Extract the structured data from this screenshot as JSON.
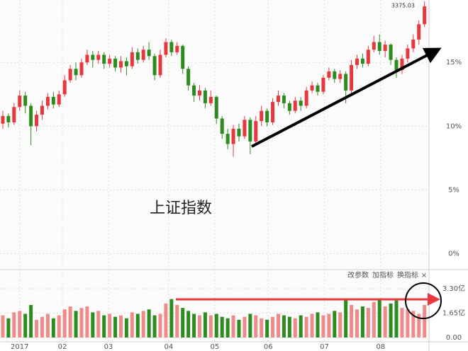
{
  "chart_data": [
    {
      "type": "candlestick",
      "label": "上证指数",
      "high_label": "3375.03",
      "up_color": "#e8383d",
      "down_color": "#2e8b1e",
      "xlim": [
        -0.5,
        75.8
      ],
      "ylim": [
        -1.2,
        19.9
      ],
      "yticks": [
        {
          "value": 0,
          "label": "0%"
        },
        {
          "value": 5,
          "label": "5%"
        },
        {
          "value": 10,
          "label": "10%"
        },
        {
          "value": 15,
          "label": "15%"
        }
      ],
      "xticks": [
        {
          "value": 3.0,
          "label": "2017"
        },
        {
          "value": 10.6,
          "label": "02"
        },
        {
          "value": 18.8,
          "label": "03"
        },
        {
          "value": 29.5,
          "label": "04"
        },
        {
          "value": 37.7,
          "label": "05"
        },
        {
          "value": 47.2,
          "label": "06"
        },
        {
          "value": 57.2,
          "label": "07"
        },
        {
          "value": 67.2,
          "label": "08"
        }
      ],
      "open": [
        10.2,
        10.8,
        10.3,
        11.5,
        12.4,
        11.6,
        10.0,
        10.9,
        11.6,
        12.3,
        11.7,
        12.5,
        13.6,
        14.5,
        14.0,
        15.0,
        15.6,
        15.2,
        15.6,
        14.9,
        15.3,
        14.6,
        15.1,
        14.7,
        15.8,
        15.2,
        16.0,
        15.5,
        14.0,
        15.6,
        16.6,
        15.8,
        16.3,
        14.5,
        13.2,
        12.4,
        12.8,
        11.8,
        12.3,
        10.6,
        9.4,
        8.6,
        9.8,
        9.2,
        10.5,
        8.8,
        10.4,
        11.2,
        10.3,
        11.9,
        12.4,
        11.8,
        11.2,
        12.0,
        11.6,
        12.8,
        13.2,
        12.7,
        13.8,
        14.3,
        13.7,
        14.1,
        12.8,
        14.8,
        15.3,
        14.9,
        16.0,
        16.6,
        15.9,
        16.4,
        15.2,
        14.4,
        15.3,
        16.1,
        16.8,
        18.0
      ],
      "high": [
        11.2,
        11.0,
        11.8,
        12.8,
        12.7,
        11.8,
        11.2,
        12.0,
        12.6,
        12.7,
        12.8,
        14.0,
        14.8,
        15.0,
        15.3,
        16.0,
        15.9,
        15.9,
        15.8,
        15.6,
        15.5,
        15.5,
        15.4,
        16.2,
        16.1,
        16.3,
        16.6,
        15.7,
        16.0,
        16.9,
        16.8,
        16.6,
        16.4,
        14.7,
        13.4,
        13.2,
        13.0,
        12.8,
        12.4,
        10.8,
        9.8,
        10.1,
        10.2,
        10.8,
        10.7,
        10.8,
        11.6,
        11.4,
        12.2,
        12.8,
        12.6,
        12.0,
        12.3,
        12.3,
        13.1,
        13.5,
        13.4,
        14.0,
        14.6,
        14.5,
        14.4,
        14.3,
        15.2,
        15.6,
        15.7,
        16.3,
        17.1,
        17.2,
        16.7,
        16.5,
        15.4,
        15.6,
        16.4,
        17.2,
        18.3,
        19.8
      ],
      "low": [
        9.8,
        9.9,
        10.1,
        11.2,
        11.0,
        8.5,
        9.6,
        10.5,
        11.3,
        11.4,
        11.5,
        12.3,
        13.4,
        13.6,
        13.8,
        14.8,
        14.6,
        14.9,
        14.5,
        14.6,
        14.3,
        14.2,
        14.0,
        14.5,
        14.9,
        15.0,
        15.2,
        13.6,
        13.8,
        15.4,
        15.5,
        15.6,
        14.1,
        12.8,
        11.9,
        12.0,
        11.4,
        11.6,
        10.2,
        9.0,
        8.2,
        7.6,
        8.8,
        9.0,
        7.8,
        8.6,
        10.0,
        10.0,
        10.1,
        11.6,
        11.4,
        10.9,
        11.0,
        11.2,
        11.4,
        12.6,
        12.4,
        12.5,
        13.6,
        13.4,
        13.4,
        11.8,
        12.6,
        14.5,
        14.6,
        14.7,
        15.8,
        15.6,
        15.4,
        14.8,
        13.8,
        14.1,
        15.0,
        15.8,
        16.4,
        17.8
      ],
      "close": [
        10.8,
        10.3,
        11.5,
        12.4,
        11.6,
        10.0,
        10.9,
        11.6,
        12.3,
        11.7,
        12.5,
        13.6,
        14.5,
        14.0,
        15.0,
        15.6,
        15.2,
        15.6,
        14.9,
        15.3,
        14.6,
        15.1,
        14.7,
        15.8,
        15.2,
        16.0,
        15.5,
        14.0,
        15.6,
        16.6,
        15.8,
        16.3,
        14.5,
        13.2,
        12.4,
        12.8,
        11.8,
        12.3,
        10.6,
        9.4,
        8.6,
        9.8,
        9.2,
        10.5,
        8.8,
        10.4,
        11.2,
        10.3,
        11.9,
        12.4,
        11.8,
        11.2,
        12.0,
        11.6,
        12.8,
        13.2,
        12.7,
        13.8,
        14.3,
        13.7,
        14.1,
        12.8,
        14.8,
        15.3,
        14.9,
        16.0,
        16.6,
        15.9,
        16.4,
        15.2,
        14.4,
        15.3,
        16.1,
        16.8,
        18.0,
        19.4
      ]
    },
    {
      "type": "bar",
      "controls": [
        "改参数",
        "加指标",
        "换指标",
        "×"
      ],
      "up_color": "#f08a8a",
      "down_color": "#2e8b1e",
      "ylim": [
        -0.24,
        4.54
      ],
      "yticks": [
        {
          "value": 0,
          "label": "0.00"
        },
        {
          "value": 1.65,
          "label": "1.65亿"
        },
        {
          "value": 3.3,
          "label": "3.30亿"
        }
      ],
      "values": [
        1.5,
        1.3,
        1.7,
        1.8,
        1.6,
        2.2,
        1.2,
        1.4,
        1.6,
        1.3,
        1.5,
        1.9,
        2.1,
        1.8,
        2.0,
        2.1,
        1.7,
        1.8,
        1.5,
        1.6,
        1.4,
        1.5,
        1.3,
        1.7,
        1.6,
        1.8,
        1.9,
        1.5,
        1.6,
        2.3,
        2.6,
        2.2,
        2.0,
        1.8,
        1.6,
        1.5,
        1.7,
        1.5,
        1.6,
        1.4,
        1.3,
        1.5,
        1.2,
        1.4,
        1.6,
        1.5,
        1.3,
        1.2,
        1.4,
        1.6,
        1.5,
        1.4,
        1.3,
        1.5,
        1.4,
        1.6,
        1.7,
        1.5,
        1.6,
        1.8,
        1.7,
        2.6,
        2.2,
        1.9,
        2.1,
        2.0,
        2.4,
        2.6,
        2.1,
        2.3,
        2.5,
        2.0,
        1.9,
        1.8,
        1.6,
        2.2
      ]
    }
  ]
}
